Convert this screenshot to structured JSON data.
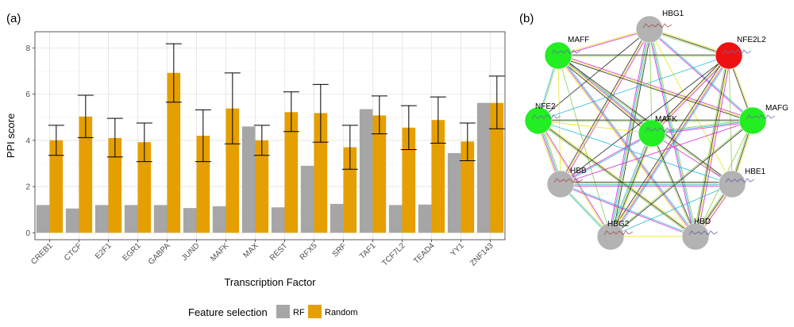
{
  "panel_a_label": "(a)",
  "panel_b_label": "(b)",
  "chart_data": {
    "type": "bar",
    "xlabel": "Transcription Factor",
    "ylabel": "PPI score",
    "ylim": [
      -0.3,
      8.7
    ],
    "yticks": [
      0,
      2,
      4,
      6,
      8
    ],
    "grid": true,
    "legend_title": "Feature selection",
    "legend_position": "bottom",
    "categories": [
      "CREB1",
      "CTCF",
      "E2F1",
      "EGR1",
      "GABPA",
      "JUND",
      "MAFK",
      "MAX",
      "REST",
      "RFX5",
      "SRF",
      "TAF1",
      "TCF7L2",
      "TEAD4",
      "YY1",
      "ZNF143"
    ],
    "series": [
      {
        "name": "RF",
        "color": "#a6a6a6",
        "values": [
          1.2,
          1.05,
          1.2,
          1.2,
          1.2,
          1.07,
          1.15,
          4.6,
          1.1,
          2.9,
          1.25,
          5.35,
          1.2,
          1.22,
          3.45,
          5.62
        ]
      },
      {
        "name": "Random",
        "color": "#e69f00",
        "values": [
          4.0,
          5.03,
          4.1,
          3.92,
          6.92,
          4.2,
          5.38,
          4.0,
          5.22,
          5.18,
          3.7,
          5.08,
          4.55,
          4.88,
          3.95,
          5.62
        ],
        "error_low": [
          3.35,
          4.12,
          3.28,
          3.08,
          5.65,
          3.08,
          3.85,
          3.35,
          4.38,
          3.92,
          2.75,
          4.28,
          3.6,
          3.88,
          3.12,
          4.5
        ],
        "error_high": [
          4.65,
          5.95,
          4.95,
          4.75,
          8.18,
          5.32,
          6.92,
          4.65,
          6.1,
          6.42,
          4.65,
          5.92,
          5.5,
          5.88,
          4.75,
          6.78
        ]
      }
    ]
  },
  "network": {
    "nodes": [
      {
        "id": "HBG1",
        "label": "HBG1",
        "color": "#b3b3b3"
      },
      {
        "id": "MAFF",
        "label": "MAFF",
        "color": "#22ee22"
      },
      {
        "id": "NFE2L2",
        "label": "NFE2L2",
        "color": "#ee1111"
      },
      {
        "id": "NFE2",
        "label": "NFE2",
        "color": "#22ee22"
      },
      {
        "id": "MAFK",
        "label": "MAFK",
        "color": "#22ee22"
      },
      {
        "id": "MAFG",
        "label": "MAFG",
        "color": "#22ee22"
      },
      {
        "id": "HBB",
        "label": "HBB",
        "color": "#b3b3b3"
      },
      {
        "id": "HBE1",
        "label": "HBE1",
        "color": "#b3b3b3"
      },
      {
        "id": "HBG2",
        "label": "HBG2",
        "color": "#b3b3b3"
      },
      {
        "id": "HBD",
        "label": "HBD",
        "color": "#b3b3b3"
      }
    ],
    "edge_colors": [
      "#1ab3d4",
      "#d41ad4",
      "#e6e61a",
      "#1a1a1a",
      "#88cc44"
    ]
  }
}
